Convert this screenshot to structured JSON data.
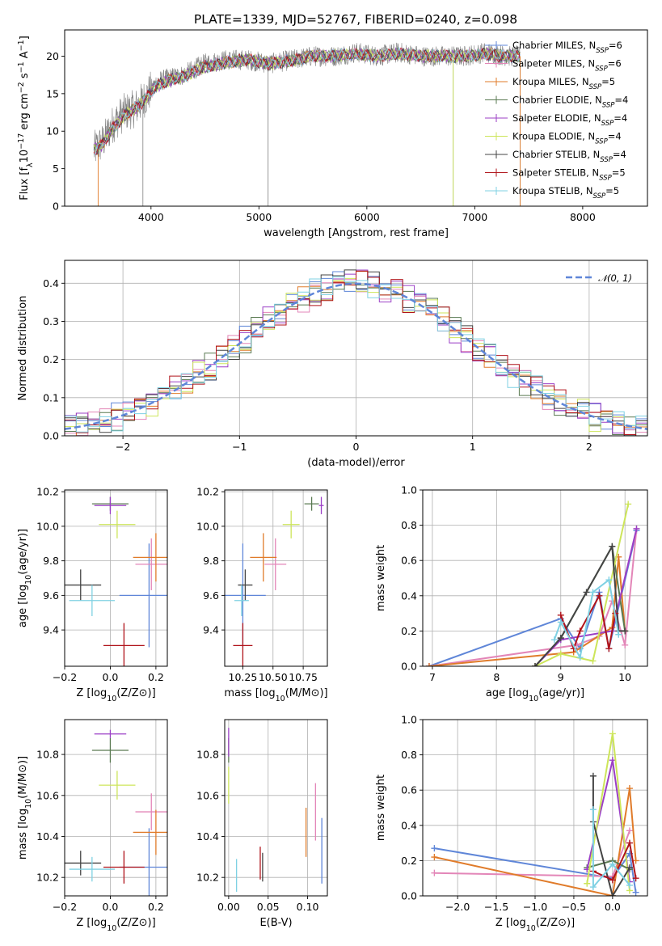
{
  "title": "PLATE=1339, MJD=52767, FIBERID=0240, z=0.098",
  "colors": {
    "chabrier_miles": "#5f86d8",
    "salpeter_miles": "#e386b8",
    "kroupa_miles": "#e07b2a",
    "chabrier_elodie": "#5a7a52",
    "salpeter_elodie": "#9b3fc6",
    "kroupa_elodie": "#cde55a",
    "chabrier_stelib": "#444444",
    "salpeter_stelib": "#b0141b",
    "kroupa_stelib": "#7fd1e3",
    "spectrum_data": "#808080",
    "gaussian": "#5f86d8",
    "grid": "#b0b0b0"
  },
  "chart_data": [
    {
      "id": "spectrum",
      "type": "line",
      "title": "PLATE=1339, MJD=52767, FIBERID=0240, z=0.098",
      "xlabel": "wavelength [Angstrom, rest frame]",
      "ylabel": "Flux [fλ10⁻¹⁷ erg cm⁻² s⁻¹ A⁻¹]",
      "xlim": [
        3200,
        8600
      ],
      "ylim": [
        0,
        23.5
      ],
      "xticks": [
        "4000",
        "5000",
        "6000",
        "7000",
        "8000"
      ],
      "yticks": [
        "0",
        "5",
        "10",
        "15",
        "20"
      ],
      "grid": false,
      "legend_position": "top-right",
      "legend": [
        {
          "prefix": "Chabrier MILES, N",
          "sub": "SSP",
          "suffix": "=6",
          "color": "#5f86d8"
        },
        {
          "prefix": "Salpeter MILES, N",
          "sub": "SSP",
          "suffix": "=6",
          "color": "#e386b8"
        },
        {
          "prefix": "Kroupa MILES, N",
          "sub": "SSP",
          "suffix": "=5",
          "color": "#e07b2a"
        },
        {
          "prefix": "Chabrier ELODIE, N",
          "sub": "SSP",
          "suffix": "=4",
          "color": "#5a7a52"
        },
        {
          "prefix": "Salpeter ELODIE, N",
          "sub": "SSP",
          "suffix": "=4",
          "color": "#9b3fc6"
        },
        {
          "prefix": "Kroupa ELODIE, N",
          "sub": "SSP",
          "suffix": "=4",
          "color": "#cde55a"
        },
        {
          "prefix": "Chabrier STELIB, N",
          "sub": "SSP",
          "suffix": "=4",
          "color": "#444444"
        },
        {
          "prefix": "Salpeter STELIB, N",
          "sub": "SSP",
          "suffix": "=5",
          "color": "#b0141b"
        },
        {
          "prefix": "Kroupa STELIB, N",
          "sub": "SSP",
          "suffix": "=5",
          "color": "#7fd1e3"
        }
      ],
      "data_series": {
        "x": [
          3470,
          3550,
          3650,
          3750,
          3850,
          3950,
          4050,
          4150,
          4300,
          4500,
          4700,
          4900,
          5100,
          5300,
          5500,
          5700,
          5900,
          6100,
          6300,
          6500,
          6700,
          6900,
          7100,
          7300
        ],
        "y": [
          7.5,
          8.5,
          11.0,
          12.5,
          13.0,
          14.5,
          16.5,
          17.0,
          17.5,
          19.0,
          19.5,
          19.5,
          19.0,
          19.5,
          20.0,
          20.0,
          20.5,
          20.0,
          20.5,
          20.0,
          20.0,
          20.0,
          20.5,
          20.0
        ]
      },
      "model_series": {
        "x": [
          3470,
          3550,
          3650,
          3750,
          3850,
          3950,
          4050,
          4150,
          4300,
          4500,
          4700,
          4900,
          5100,
          5300,
          5500,
          5700,
          5900,
          6100,
          6300,
          6500,
          6700,
          6900,
          7100,
          7300
        ],
        "y": [
          7.5,
          8.2,
          10.5,
          12.0,
          13.0,
          14.3,
          16.0,
          16.7,
          17.3,
          18.6,
          19.2,
          19.5,
          19.0,
          19.4,
          20.0,
          20.0,
          20.3,
          20.0,
          20.3,
          20.0,
          20.0,
          20.0,
          20.3,
          20.0
        ]
      }
    },
    {
      "id": "residuals",
      "type": "line",
      "xlabel": "(data-model)/error",
      "ylabel": "Normed distribution",
      "xlim": [
        -2.5,
        2.5
      ],
      "ylim": [
        0,
        0.46
      ],
      "xticks": [
        "−2",
        "−1",
        "0",
        "1",
        "2"
      ],
      "yticks": [
        "0.0",
        "0.1",
        "0.2",
        "0.3",
        "0.4"
      ],
      "grid": true,
      "legend_position": "top-right",
      "legend": [
        {
          "label": "𝒩(0, 1)",
          "color": "#5f86d8",
          "style": "dashed"
        }
      ],
      "bin_width": 0.1
    },
    {
      "id": "age-vs-z",
      "type": "scatter",
      "xlabel": "Z [log10(Z/Z⊙)]",
      "ylabel": "age  [log10(age/yr)]",
      "xlim": [
        -0.2,
        0.25
      ],
      "ylim": [
        9.19,
        10.21
      ],
      "xticks": [
        "−0.2",
        "0.0",
        "0.2"
      ],
      "yticks": [
        "9.4",
        "9.6",
        "9.8",
        "10.0",
        "10.2"
      ],
      "grid": true,
      "points": [
        {
          "model": "Chabrier MILES",
          "x": 0.17,
          "xerr": 0.13,
          "y": 9.6,
          "yerr": 0.3,
          "color": "#5f86d8"
        },
        {
          "model": "Salpeter MILES",
          "x": 0.18,
          "xerr": 0.07,
          "y": 9.78,
          "yerr": 0.15,
          "color": "#e386b8"
        },
        {
          "model": "Kroupa MILES",
          "x": 0.2,
          "xerr": 0.1,
          "y": 9.82,
          "yerr": 0.14,
          "color": "#e07b2a"
        },
        {
          "model": "Chabrier ELODIE",
          "x": 0.0,
          "xerr": 0.08,
          "y": 10.13,
          "yerr": 0.04,
          "color": "#5a7a52"
        },
        {
          "model": "Salpeter ELODIE",
          "x": 0.0,
          "xerr": 0.07,
          "y": 10.12,
          "yerr": 0.05,
          "color": "#9b3fc6"
        },
        {
          "model": "Kroupa ELODIE",
          "x": 0.03,
          "xerr": 0.08,
          "y": 10.01,
          "yerr": 0.08,
          "color": "#cde55a"
        },
        {
          "model": "Chabrier STELIB",
          "x": -0.13,
          "xerr": 0.09,
          "y": 9.66,
          "yerr": 0.09,
          "color": "#444444"
        },
        {
          "model": "Salpeter STELIB",
          "x": 0.06,
          "xerr": 0.09,
          "y": 9.31,
          "yerr": 0.13,
          "color": "#b0141b"
        },
        {
          "model": "Kroupa STELIB",
          "x": -0.08,
          "xerr": 0.1,
          "y": 9.57,
          "yerr": 0.09,
          "color": "#7fd1e3"
        }
      ]
    },
    {
      "id": "age-vs-mass",
      "type": "scatter",
      "xlabel": "mass [log10(M/M⊙)]",
      "ylabel": "",
      "xlim": [
        10.1,
        10.95
      ],
      "ylim": [
        9.19,
        10.21
      ],
      "xticks": [
        "10.25",
        "10.50",
        "10.75"
      ],
      "yticks": [
        "9.4",
        "9.6",
        "9.8",
        "10.0",
        "10.2"
      ],
      "grid": true,
      "points": [
        {
          "model": "Chabrier MILES",
          "x": 10.25,
          "xerr": 0.19,
          "y": 9.6,
          "yerr": 0.3,
          "color": "#5f86d8"
        },
        {
          "model": "Salpeter MILES",
          "x": 10.52,
          "xerr": 0.09,
          "y": 9.78,
          "yerr": 0.15,
          "color": "#e386b8"
        },
        {
          "model": "Kroupa MILES",
          "x": 10.42,
          "xerr": 0.11,
          "y": 9.82,
          "yerr": 0.14,
          "color": "#e07b2a"
        },
        {
          "model": "Chabrier ELODIE",
          "x": 10.82,
          "xerr": 0.06,
          "y": 10.13,
          "yerr": 0.04,
          "color": "#5a7a52"
        },
        {
          "model": "Salpeter ELODIE",
          "x": 10.9,
          "xerr": 0.02,
          "y": 10.12,
          "yerr": 0.05,
          "color": "#9b3fc6"
        },
        {
          "model": "Kroupa ELODIE",
          "x": 10.65,
          "xerr": 0.07,
          "y": 10.01,
          "yerr": 0.08,
          "color": "#cde55a"
        },
        {
          "model": "Chabrier STELIB",
          "x": 10.27,
          "xerr": 0.06,
          "y": 9.66,
          "yerr": 0.09,
          "color": "#444444"
        },
        {
          "model": "Salpeter STELIB",
          "x": 10.25,
          "xerr": 0.08,
          "y": 9.31,
          "yerr": 0.13,
          "color": "#b0141b"
        },
        {
          "model": "Kroupa STELIB",
          "x": 10.24,
          "xerr": 0.06,
          "y": 9.57,
          "yerr": 0.09,
          "color": "#7fd1e3"
        }
      ]
    },
    {
      "id": "mass-weight-vs-age",
      "type": "line",
      "xlabel": "age  [log10(age/yr)]",
      "ylabel": "mass weight",
      "xlim": [
        6.85,
        10.35
      ],
      "ylim": [
        0,
        1.0
      ],
      "xticks": [
        "7",
        "8",
        "9",
        "10"
      ],
      "yticks": [
        "0.0",
        "0.2",
        "0.4",
        "0.6",
        "0.8",
        "1.0"
      ],
      "grid": true,
      "series": [
        {
          "model": "Chabrier MILES",
          "color": "#5f86d8",
          "x": [
            6.95,
            9.0,
            9.3,
            9.6,
            9.75,
            10.18
          ],
          "y": [
            0.0,
            0.27,
            0.1,
            0.42,
            0.1,
            0.77
          ]
        },
        {
          "model": "Salpeter MILES",
          "color": "#e386b8",
          "x": [
            6.95,
            9.25,
            9.6,
            9.8,
            10.0,
            10.18
          ],
          "y": [
            0.0,
            0.12,
            0.17,
            0.37,
            0.12,
            0.78
          ]
        },
        {
          "model": "Kroupa MILES",
          "color": "#e07b2a",
          "x": [
            6.95,
            9.2,
            9.8,
            9.9,
            10.0
          ],
          "y": [
            0.0,
            0.08,
            0.22,
            0.62,
            0.2
          ]
        },
        {
          "model": "Chabrier ELODIE",
          "color": "#5a7a52",
          "x": [
            8.6,
            9.0,
            9.8,
            10.0
          ],
          "y": [
            0.0,
            0.16,
            0.68,
            0.2
          ]
        },
        {
          "model": "Salpeter ELODIE",
          "color": "#9b3fc6",
          "x": [
            8.6,
            9.0,
            9.8,
            10.18
          ],
          "y": [
            0.0,
            0.15,
            0.2,
            0.78
          ]
        },
        {
          "model": "Kroupa ELODIE",
          "color": "#cde55a",
          "x": [
            8.6,
            9.0,
            9.5,
            10.05
          ],
          "y": [
            0.0,
            0.07,
            0.03,
            0.92
          ]
        },
        {
          "model": "Chabrier STELIB",
          "color": "#444444",
          "x": [
            8.6,
            9.0,
            9.4,
            9.8,
            9.9,
            10.0
          ],
          "y": [
            0.0,
            0.16,
            0.42,
            0.68,
            0.2,
            0.2
          ]
        },
        {
          "model": "Salpeter STELIB",
          "color": "#b0141b",
          "x": [
            9.0,
            9.2,
            9.3,
            9.6,
            9.75,
            9.85
          ],
          "y": [
            0.29,
            0.1,
            0.2,
            0.4,
            0.1,
            0.3
          ]
        },
        {
          "model": "Kroupa STELIB",
          "color": "#7fd1e3",
          "x": [
            8.9,
            9.0,
            9.3,
            9.5,
            9.75,
            9.9
          ],
          "y": [
            0.15,
            0.25,
            0.05,
            0.42,
            0.49,
            0.18
          ]
        }
      ]
    },
    {
      "id": "mass-vs-z",
      "type": "scatter",
      "xlabel": "Z [log10(Z/Z⊙)]",
      "ylabel": "mass [log10(M/M⊙)]",
      "xlim": [
        -0.2,
        0.25
      ],
      "ylim": [
        10.11,
        10.97
      ],
      "xticks": [
        "−0.2",
        "0.0",
        "0.2"
      ],
      "yticks": [
        "10.2",
        "10.4",
        "10.6",
        "10.8"
      ],
      "grid": true,
      "points": [
        {
          "model": "Chabrier MILES",
          "x": 0.17,
          "xerr": 0.13,
          "y": 10.25,
          "yerr": 0.19,
          "color": "#5f86d8"
        },
        {
          "model": "Salpeter MILES",
          "x": 0.18,
          "xerr": 0.07,
          "y": 10.52,
          "yerr": 0.09,
          "color": "#e386b8"
        },
        {
          "model": "Kroupa MILES",
          "x": 0.2,
          "xerr": 0.1,
          "y": 10.42,
          "yerr": 0.11,
          "color": "#e07b2a"
        },
        {
          "model": "Chabrier ELODIE",
          "x": 0.0,
          "xerr": 0.08,
          "y": 10.82,
          "yerr": 0.06,
          "color": "#5a7a52"
        },
        {
          "model": "Salpeter ELODIE",
          "x": 0.0,
          "xerr": 0.07,
          "y": 10.9,
          "yerr": 0.02,
          "color": "#9b3fc6"
        },
        {
          "model": "Kroupa ELODIE",
          "x": 0.03,
          "xerr": 0.08,
          "y": 10.65,
          "yerr": 0.07,
          "color": "#cde55a"
        },
        {
          "model": "Chabrier STELIB",
          "x": -0.13,
          "xerr": 0.09,
          "y": 10.27,
          "yerr": 0.06,
          "color": "#444444"
        },
        {
          "model": "Salpeter STELIB",
          "x": 0.06,
          "xerr": 0.09,
          "y": 10.25,
          "yerr": 0.08,
          "color": "#b0141b"
        },
        {
          "model": "Kroupa STELIB",
          "x": -0.08,
          "xerr": 0.1,
          "y": 10.24,
          "yerr": 0.06,
          "color": "#7fd1e3"
        }
      ]
    },
    {
      "id": "mass-vs-ebv",
      "type": "scatter",
      "xlabel": "E(B-V)",
      "ylabel": "",
      "xlim": [
        -0.005,
        0.125
      ],
      "ylim": [
        10.11,
        10.97
      ],
      "xticks": [
        "0.00",
        "0.05",
        "0.10"
      ],
      "yticks": [
        "10.2",
        "10.4",
        "10.6",
        "10.8"
      ],
      "grid": true,
      "points": [
        {
          "model": "Chabrier MILES",
          "x": 0.118,
          "xerr": 0.0,
          "y": 10.33,
          "yerr": 0.16,
          "color": "#5f86d8"
        },
        {
          "model": "Salpeter MILES",
          "x": 0.11,
          "xerr": 0.0,
          "y": 10.52,
          "yerr": 0.14,
          "color": "#e386b8"
        },
        {
          "model": "Kroupa MILES",
          "x": 0.098,
          "xerr": 0.0,
          "y": 10.42,
          "yerr": 0.12,
          "color": "#e07b2a"
        },
        {
          "model": "Chabrier ELODIE",
          "x": 0.0,
          "xerr": 0.0,
          "y": 10.82,
          "yerr": 0.06,
          "color": "#5a7a52"
        },
        {
          "model": "Salpeter ELODIE",
          "x": 0.0,
          "xerr": 0.0,
          "y": 10.86,
          "yerr": 0.07,
          "color": "#9b3fc6"
        },
        {
          "model": "Kroupa ELODIE",
          "x": 0.0,
          "xerr": 0.0,
          "y": 10.65,
          "yerr": 0.09,
          "color": "#cde55a"
        },
        {
          "model": "Chabrier STELIB",
          "x": 0.043,
          "xerr": 0.0,
          "y": 10.25,
          "yerr": 0.07,
          "color": "#444444"
        },
        {
          "model": "Salpeter STELIB",
          "x": 0.04,
          "xerr": 0.0,
          "y": 10.27,
          "yerr": 0.08,
          "color": "#b0141b"
        },
        {
          "model": "Kroupa STELIB",
          "x": 0.01,
          "xerr": 0.0,
          "y": 10.21,
          "yerr": 0.08,
          "color": "#7fd1e3"
        }
      ]
    },
    {
      "id": "mass-weight-vs-z",
      "type": "line",
      "xlabel": "Z [log10(Z/Z⊙)]",
      "ylabel": "mass weight",
      "xlim": [
        -2.45,
        0.45
      ],
      "ylim": [
        0,
        1.0
      ],
      "xticks": [
        "−2.0",
        "−1.5",
        "−1.0",
        "−0.5",
        "0.0"
      ],
      "yticks": [
        "0.0",
        "0.2",
        "0.4",
        "0.6",
        "0.8",
        "1.0"
      ],
      "grid": true,
      "series": [
        {
          "model": "Chabrier MILES",
          "color": "#5f86d8",
          "x": [
            -2.3,
            0.0,
            0.22,
            0.3
          ],
          "y": [
            0.27,
            0.1,
            0.24,
            0.02
          ]
        },
        {
          "model": "Salpeter MILES",
          "color": "#e386b8",
          "x": [
            -2.3,
            0.0,
            0.22
          ],
          "y": [
            0.13,
            0.11,
            0.37
          ]
        },
        {
          "model": "Kroupa MILES",
          "color": "#e07b2a",
          "x": [
            -2.3,
            0.0,
            0.22,
            0.3
          ],
          "y": [
            0.22,
            0.0,
            0.61,
            0.2
          ]
        },
        {
          "model": "Chabrier ELODIE",
          "color": "#5a7a52",
          "x": [
            -0.33,
            0.0,
            0.22
          ],
          "y": [
            0.16,
            0.2,
            0.15
          ]
        },
        {
          "model": "Salpeter ELODIE",
          "color": "#9b3fc6",
          "x": [
            -0.33,
            0.0,
            0.22
          ],
          "y": [
            0.15,
            0.77,
            0.08
          ]
        },
        {
          "model": "Kroupa ELODIE",
          "color": "#cde55a",
          "x": [
            -0.33,
            0.0,
            0.22
          ],
          "y": [
            0.07,
            0.92,
            0.03
          ]
        },
        {
          "model": "Chabrier STELIB",
          "color": "#444444",
          "x": [
            -0.25,
            -0.25,
            0.0,
            0.22
          ],
          "y": [
            0.68,
            0.42,
            0.0,
            0.16
          ]
        },
        {
          "model": "Salpeter STELIB",
          "color": "#b0141b",
          "x": [
            -0.25,
            0.0,
            0.22,
            0.3
          ],
          "y": [
            0.14,
            0.09,
            0.3,
            0.1
          ]
        },
        {
          "model": "Kroupa STELIB",
          "color": "#7fd1e3",
          "x": [
            -0.25,
            -0.25,
            0.0,
            0.22
          ],
          "y": [
            0.49,
            0.05,
            0.18,
            0.06
          ]
        }
      ]
    }
  ]
}
